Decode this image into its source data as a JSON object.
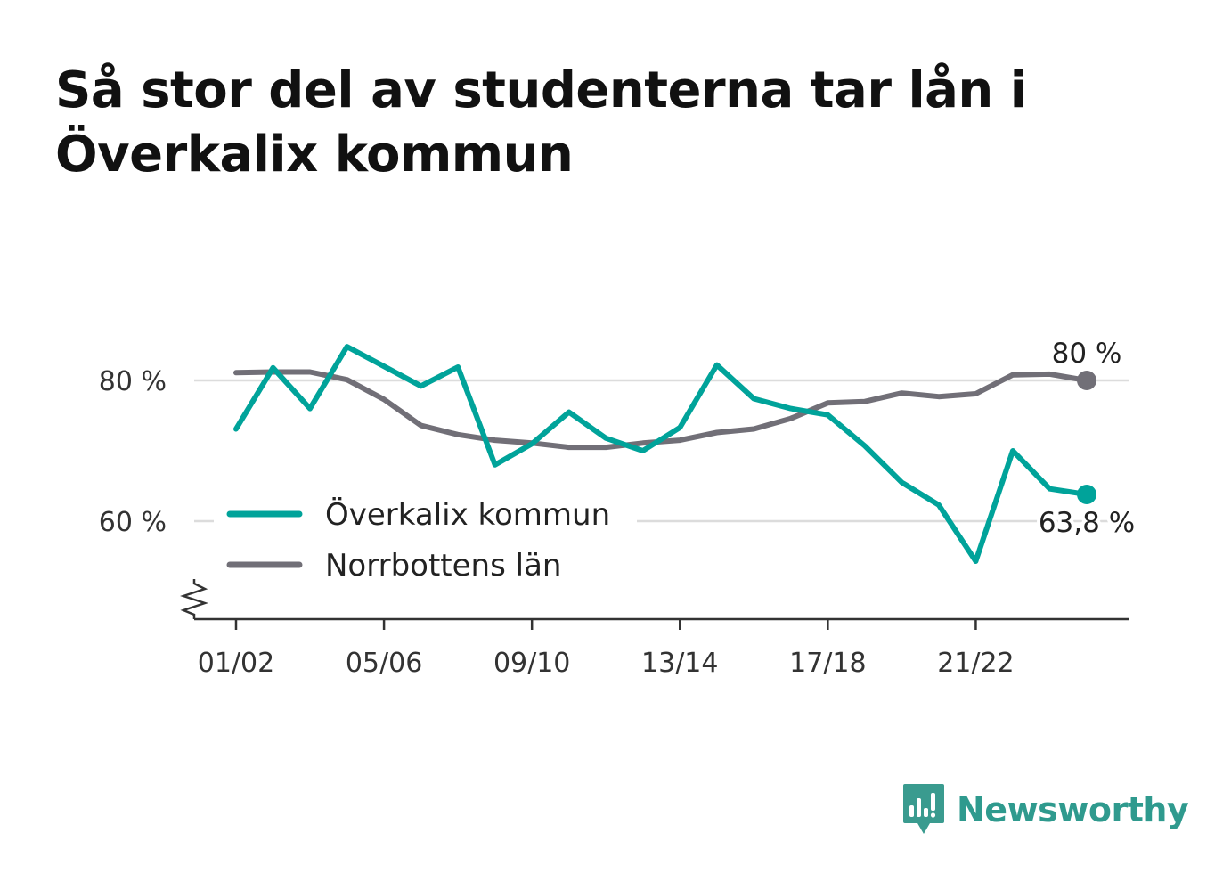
{
  "title": "Så stor del av studenterna tar lån i Överkalix kommun",
  "brand": {
    "name": "Newsworthy",
    "icon": "newsworthy-chart-bubble-icon",
    "color": "#3a9b8f"
  },
  "colors": {
    "accent": "#00a39a",
    "secondary": "#716f77",
    "grid": "#dcdcdc",
    "axis": "#333333"
  },
  "chart_data": {
    "type": "line",
    "title": "Så stor del av studenterna tar lån i Överkalix kommun",
    "xlabel": "",
    "ylabel": "",
    "categories": [
      "01/02",
      "02/03",
      "03/04",
      "04/05",
      "05/06",
      "06/07",
      "07/08",
      "08/09",
      "09/10",
      "10/11",
      "11/12",
      "12/13",
      "13/14",
      "14/15",
      "15/16",
      "16/17",
      "17/18",
      "18/19",
      "19/20",
      "20/21",
      "21/22",
      "22/23",
      "23/24",
      "24/25"
    ],
    "x_tick_labels": [
      "01/02",
      "05/06",
      "09/10",
      "13/14",
      "17/18",
      "21/22"
    ],
    "y_ticks": [
      60,
      80
    ],
    "y_tick_labels": [
      "60 %",
      "80 %"
    ],
    "ylim": [
      46,
      99
    ],
    "y_axis_break": true,
    "grid": "horizontal",
    "legend": {
      "position": "bottom-left",
      "entries": [
        "Överkalix kommun",
        "Norrbottens län"
      ]
    },
    "series": [
      {
        "name": "Överkalix kommun",
        "color": "#00a39a",
        "values": [
          73.1,
          81.8,
          76.0,
          84.8,
          82.0,
          79.2,
          81.9,
          68.0,
          71.0,
          75.5,
          71.8,
          70.0,
          73.3,
          82.2,
          77.4,
          76.0,
          75.1,
          70.7,
          65.5,
          62.3,
          54.3,
          70.0,
          64.6,
          63.8
        ],
        "end_label": "63,8 %"
      },
      {
        "name": "Norrbottens län",
        "color": "#716f77",
        "values": [
          81.1,
          81.2,
          81.2,
          80.1,
          77.3,
          73.6,
          72.3,
          71.5,
          71.1,
          70.5,
          70.5,
          71.1,
          71.5,
          72.6,
          73.1,
          74.6,
          76.8,
          77.0,
          78.2,
          77.7,
          78.1,
          80.8,
          80.9,
          80.0
        ],
        "end_label": "80 %"
      }
    ]
  }
}
